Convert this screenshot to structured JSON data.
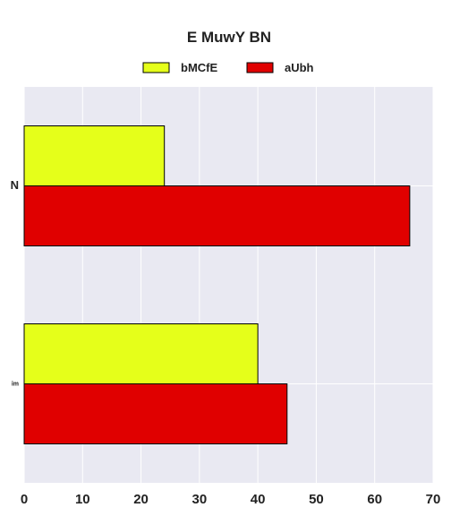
{
  "chart_data": {
    "type": "bar",
    "orientation": "horizontal",
    "title": "E MuwY  BN",
    "xlabel": "",
    "ylabel": "",
    "categories": [
      "N",
      "im"
    ],
    "series": [
      {
        "name": "bMCfE",
        "values": [
          24,
          40
        ],
        "color": "#e5ff1a"
      },
      {
        "name": "aUbh",
        "values": [
          66,
          45
        ],
        "color": "#e00000"
      }
    ],
    "xlim": [
      0,
      70
    ],
    "xticks": [
      0,
      10,
      20,
      30,
      40,
      50,
      60,
      70
    ],
    "grid": true,
    "legend_position": "top-center",
    "background_color": "#e9e9f2"
  }
}
